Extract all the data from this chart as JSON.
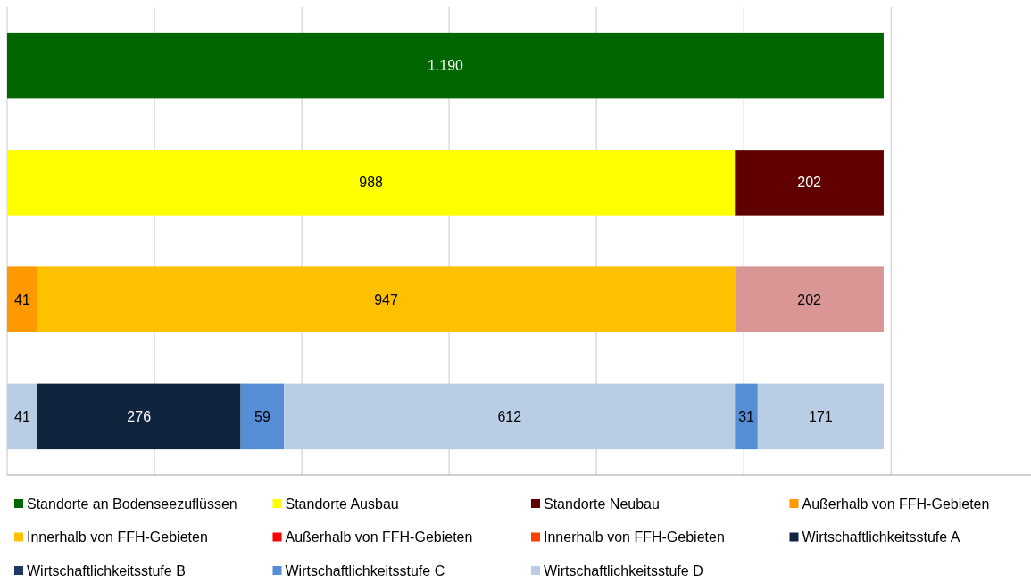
{
  "chart_data": {
    "type": "bar",
    "orientation": "horizontal",
    "stacked": true,
    "categories": [
      null,
      null,
      null,
      null
    ],
    "xlim": [
      0,
      1390
    ],
    "xticks": [
      {
        "value": 0,
        "label": null
      },
      {
        "value": 200,
        "label": null
      },
      {
        "value": 400,
        "label": null
      },
      {
        "value": 600,
        "label": null
      },
      {
        "value": 800,
        "label": null
      },
      {
        "value": 1000,
        "label": null
      },
      {
        "value": 1200,
        "label": null
      }
    ],
    "grid": "x",
    "legend": "bottom",
    "series": [
      {
        "name": "Standorte an Bodenseezuflüssen",
        "color": "#006600",
        "values": [
          1190,
          null,
          null,
          null
        ],
        "value_labels": [
          "1.190",
          null,
          null,
          null
        ]
      },
      {
        "name": "Standorte Ausbau",
        "color": "#ffff00",
        "values": [
          null,
          988,
          null,
          null
        ],
        "value_labels": [
          null,
          "988",
          null,
          null
        ]
      },
      {
        "name": "Standorte Neubau",
        "color": "#600000",
        "values": [
          null,
          202,
          null,
          null
        ],
        "value_labels": [
          null,
          "202",
          null,
          null
        ]
      },
      {
        "name": "Außerhalb von FFH-Gebieten",
        "color": "#ff9900",
        "values": [
          null,
          null,
          41,
          null
        ],
        "value_labels": [
          null,
          null,
          "41",
          null
        ]
      },
      {
        "name": "Innerhalb von FFH-Gebieten",
        "color": "#ffc000",
        "values": [
          null,
          null,
          947,
          null
        ],
        "value_labels": [
          null,
          null,
          "947",
          null
        ]
      },
      {
        "name": "Außerhalb von FFH-Gebieten",
        "color": "#ff0000",
        "values": [
          null,
          null,
          null,
          null
        ]
      },
      {
        "name": "Innerhalb von FFH-Gebieten",
        "color": "#ff4000",
        "values": [
          null,
          null,
          null,
          null
        ]
      },
      {
        "color": "#d99694",
        "values": [
          null,
          null,
          202,
          null
        ],
        "value_labels": [
          null,
          null,
          "202",
          null
        ]
      },
      {
        "color": "#b9cde5",
        "values": [
          null,
          null,
          null,
          41
        ],
        "value_labels": [
          null,
          null,
          null,
          "41"
        ]
      },
      {
        "name": "Wirtschaftlichkeitsstufe A",
        "color": "#10243e",
        "values": [
          null,
          null,
          null,
          276
        ],
        "value_labels": [
          null,
          null,
          null,
          "276"
        ]
      },
      {
        "name": "Wirtschaftlichkeitsstufe B",
        "color": "#1f3864",
        "values": [
          null,
          null,
          null,
          null
        ]
      },
      {
        "name": "Wirtschaftlichkeitsstufe C",
        "color": "#558ed5",
        "values": [
          null,
          null,
          null,
          59
        ],
        "value_labels": [
          null,
          null,
          null,
          "59"
        ]
      },
      {
        "name": "Wirtschaftlichkeitsstufe D",
        "color": "#b9cde5",
        "values": [
          null,
          null,
          null,
          612
        ],
        "value_labels": [
          null,
          null,
          null,
          "612"
        ]
      },
      {
        "color": "#558ed5",
        "values": [
          null,
          null,
          null,
          31
        ],
        "value_labels": [
          null,
          null,
          null,
          "31"
        ]
      },
      {
        "color": "#b9cde5",
        "values": [
          null,
          null,
          null,
          171
        ],
        "value_labels": [
          null,
          null,
          null,
          "171"
        ]
      }
    ]
  }
}
